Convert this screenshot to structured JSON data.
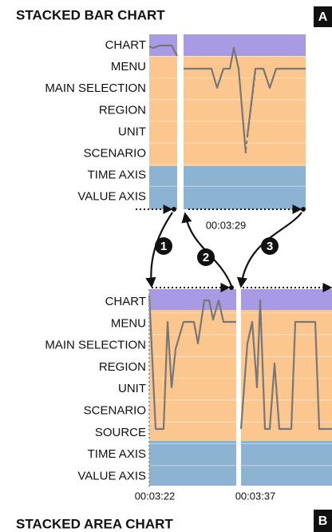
{
  "panel_a": {
    "title": "STACKED BAR CHART",
    "tag": "A",
    "rows": [
      "CHART",
      "MENU",
      "MAIN SELECTION",
      "REGION",
      "UNIT",
      "SCENARIO",
      "TIME AXIS",
      "VALUE AXIS"
    ],
    "time": "00:03:29"
  },
  "steps": [
    "1",
    "2",
    "3"
  ],
  "panel_b": {
    "title": "STACKED AREA CHART",
    "tag": "B",
    "rows": [
      "CHART",
      "MENU",
      "MAIN SELECTION",
      "REGION",
      "UNIT",
      "SCENARIO",
      "SOURCE",
      "TIME AXIS",
      "VALUE AXIS"
    ],
    "times": [
      "00:03:22",
      "00:03:37"
    ]
  }
}
